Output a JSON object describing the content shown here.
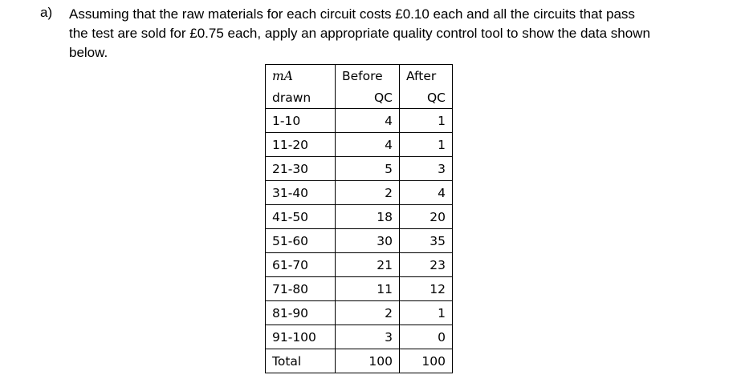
{
  "question": {
    "label": "a)",
    "lines": [
      "Assuming that the raw materials for each circuit costs £0.10 each and all the circuits that pass",
      "the test are sold for £0.75 each, apply an appropriate quality control tool to show the data shown",
      "below."
    ]
  },
  "table": {
    "header": [
      [
        "mA",
        "Before",
        "After"
      ],
      [
        "drawn",
        "QC",
        "QC"
      ]
    ],
    "rows": [
      [
        "1-10",
        4,
        1
      ],
      [
        "11-20",
        4,
        1
      ],
      [
        "21-30",
        5,
        3
      ],
      [
        "31-40",
        2,
        4
      ],
      [
        "41-50",
        18,
        20
      ],
      [
        "51-60",
        30,
        35
      ],
      [
        "61-70",
        21,
        23
      ],
      [
        "71-80",
        11,
        12
      ],
      [
        "81-90",
        2,
        1
      ],
      [
        "91-100",
        3,
        0
      ],
      [
        "Total",
        100,
        100
      ]
    ]
  }
}
